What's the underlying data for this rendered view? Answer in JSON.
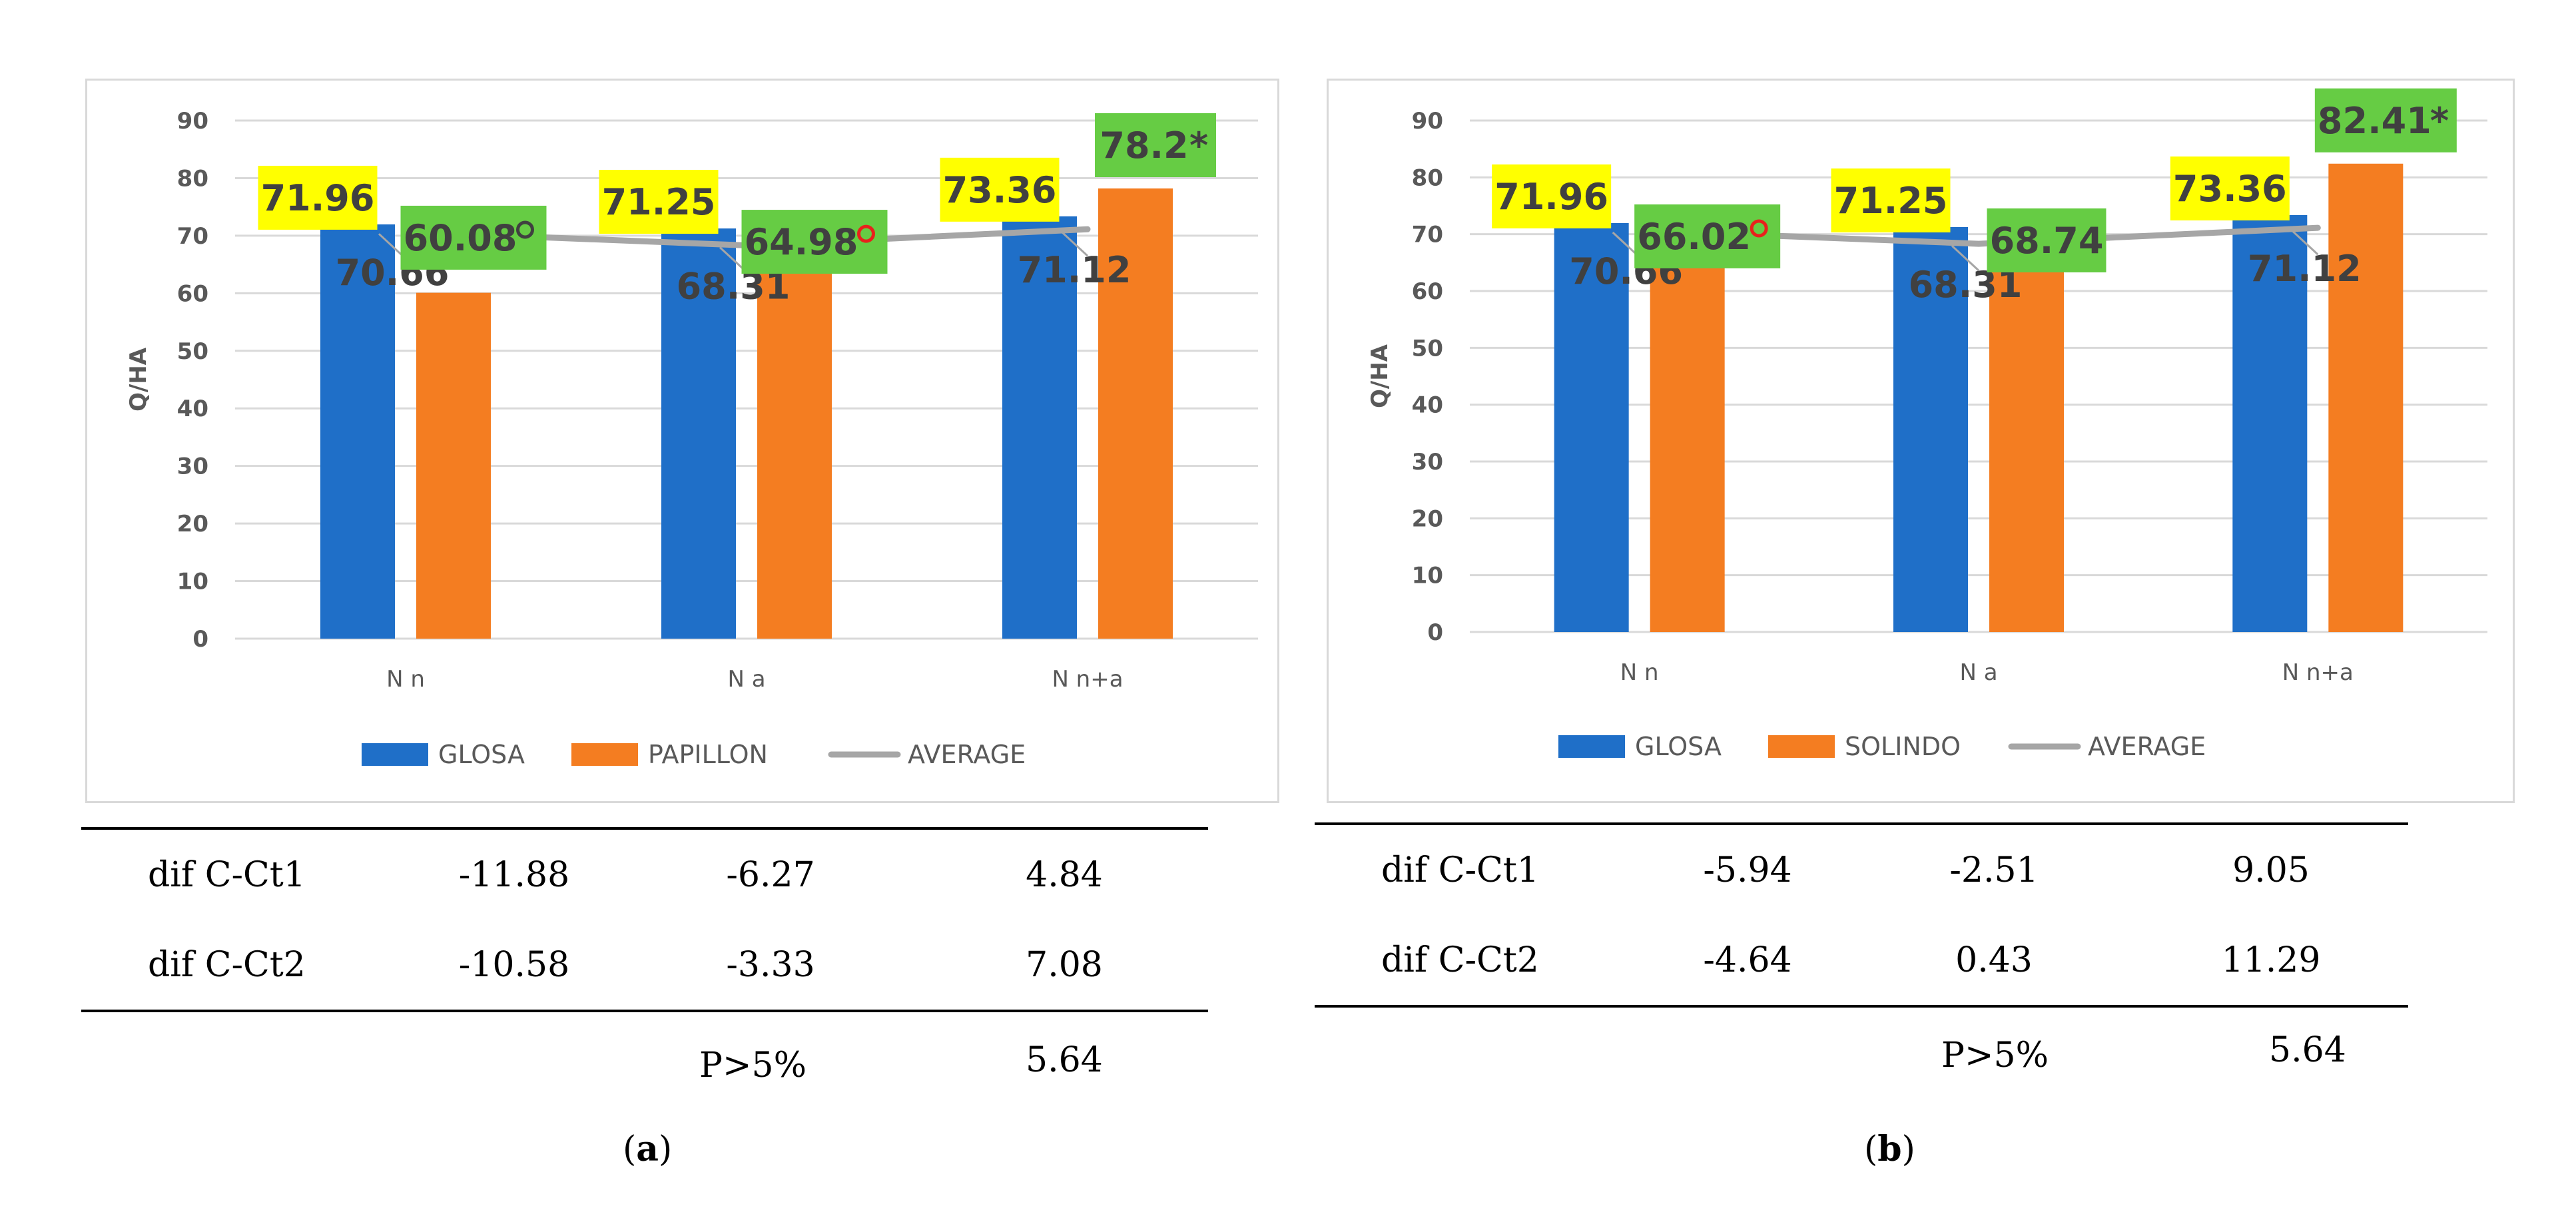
{
  "chart_data": [
    {
      "type": "bar",
      "panel": "a",
      "ylabel": "Q/HA",
      "ylim": [
        0,
        90
      ],
      "yticks": [
        "0",
        "10",
        "20",
        "30",
        "40",
        "50",
        "60",
        "70",
        "80",
        "90"
      ],
      "categories": [
        "N n",
        "N a",
        "N n+a"
      ],
      "series": [
        {
          "name": "GLOSA",
          "color": "#1f6fc8",
          "values": [
            71.96,
            71.25,
            73.36
          ],
          "labels": [
            "71.96",
            "71.25",
            "73.36"
          ]
        },
        {
          "name": "PAPILLON",
          "color": "#f47d21",
          "values": [
            60.08,
            64.98,
            78.2
          ],
          "labels": [
            "60.08",
            "64.98",
            "78.2"
          ],
          "marks": [
            "o",
            "o",
            "*"
          ]
        },
        {
          "name": "AVERAGE",
          "type": "line",
          "color": "#a6a6a6",
          "values": [
            70.66,
            68.31,
            71.12
          ],
          "labels": [
            "70.66",
            "68.31",
            "71.12"
          ]
        }
      ],
      "legend": [
        "GLOSA",
        "PAPILLON",
        "AVERAGE"
      ]
    },
    {
      "type": "bar",
      "panel": "b",
      "ylabel": "Q/HA",
      "ylim": [
        0,
        90
      ],
      "yticks": [
        "0",
        "10",
        "20",
        "30",
        "40",
        "50",
        "60",
        "70",
        "80",
        "90"
      ],
      "categories": [
        "N n",
        "N a",
        "N n+a"
      ],
      "series": [
        {
          "name": "GLOSA",
          "color": "#1f6fc8",
          "values": [
            71.96,
            71.25,
            73.36
          ],
          "labels": [
            "71.96",
            "71.25",
            "73.36"
          ]
        },
        {
          "name": "SOLINDO",
          "color": "#f47d21",
          "values": [
            66.02,
            68.74,
            82.41
          ],
          "labels": [
            "66.02",
            "68.74",
            "82.41"
          ],
          "marks": [
            "o",
            "",
            "*"
          ]
        },
        {
          "name": "AVERAGE",
          "type": "line",
          "color": "#a6a6a6",
          "values": [
            70.66,
            68.31,
            71.12
          ],
          "labels": [
            "70.66",
            "68.31",
            "71.12"
          ]
        }
      ],
      "legend": [
        "GLOSA",
        "SOLINDO",
        "AVERAGE"
      ]
    }
  ],
  "colors": {
    "label_yellow": "#ffff00",
    "label_green": "#66cc44",
    "circle_red": "#e8211c"
  },
  "tables": [
    {
      "rows": [
        {
          "label": "dif C-Ct1",
          "values": [
            "-11.88",
            "-6.27",
            "4.84"
          ]
        },
        {
          "label": "dif C-Ct2",
          "values": [
            "-10.58",
            "-3.33",
            "7.08"
          ]
        }
      ],
      "p_label": "P>5%",
      "p_value": "5.64"
    },
    {
      "rows": [
        {
          "label": "dif C-Ct1",
          "values": [
            "-5.94",
            "-2.51",
            "9.05"
          ]
        },
        {
          "label": "dif C-Ct2",
          "values": [
            "-4.64",
            "0.43",
            "11.29"
          ]
        }
      ],
      "p_label": "P>5%",
      "p_value": "5.64"
    }
  ],
  "captions": [
    {
      "open": "(",
      "letter": "a",
      "close": ")"
    },
    {
      "open": "(",
      "letter": "b",
      "close": ")"
    }
  ]
}
